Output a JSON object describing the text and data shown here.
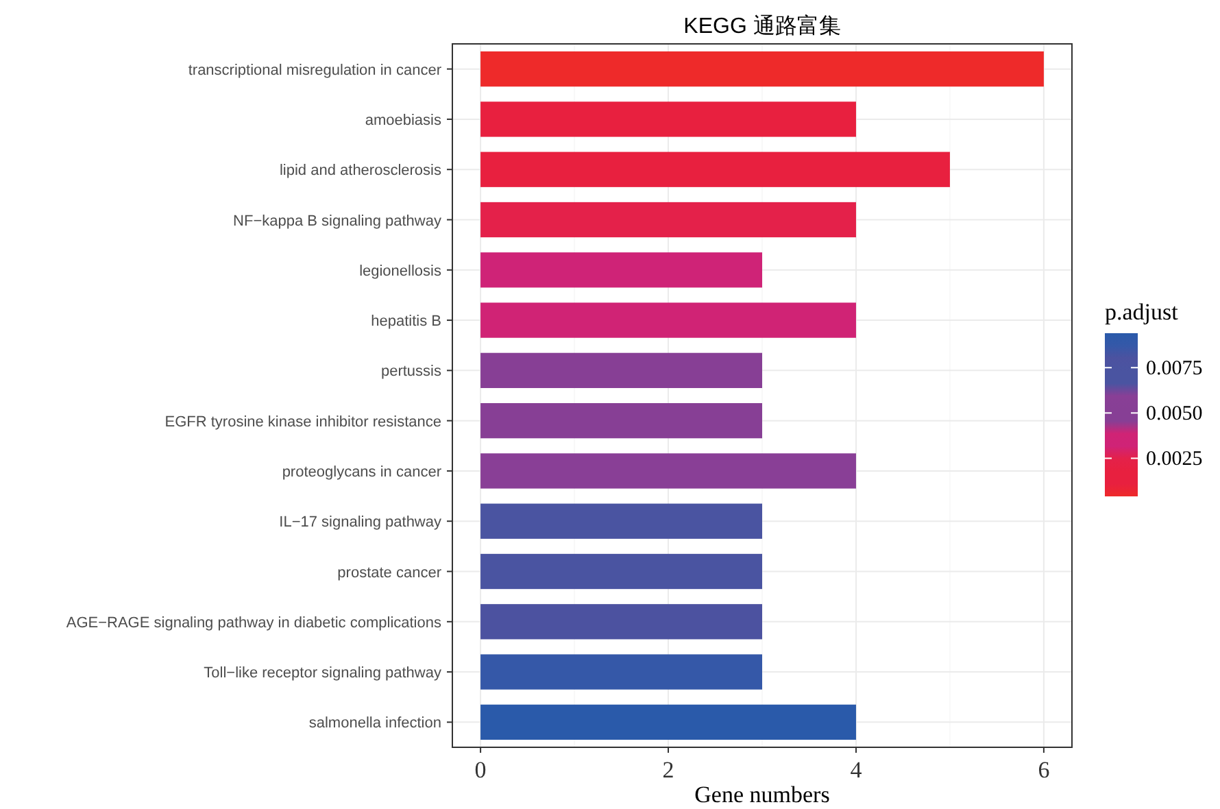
{
  "chart_data": {
    "type": "bar",
    "orientation": "horizontal",
    "title": "KEGG 通路富集",
    "xlabel": "Gene numbers",
    "clabel": "p.adjust",
    "categories": [
      "transcriptional misregulation in cancer",
      "amoebiasis",
      "lipid and atherosclerosis",
      "NF−kappa B signaling pathway",
      "legionellosis",
      "hepatitis B",
      "pertussis",
      "EGFR tyrosine kinase inhibitor resistance",
      "proteoglycans in cancer",
      "IL−17 signaling pathway",
      "prostate cancer",
      "AGE−RAGE signaling pathway in diabetic complications",
      "Toll−like receptor signaling pathway",
      "salmonella infection"
    ],
    "values": [
      6,
      4,
      5,
      4,
      3,
      4,
      3,
      3,
      4,
      3,
      3,
      3,
      3,
      4
    ],
    "colors": [
      "#ee2a2a",
      "#e8203f",
      "#e8203f",
      "#e4214a",
      "#cf2377",
      "#d02375",
      "#873f95",
      "#873f95",
      "#893f96",
      "#4a54a1",
      "#4a54a1",
      "#4c52a0",
      "#3558a8",
      "#2a5aaa"
    ],
    "xlim": [
      -0.3,
      6.3
    ],
    "xticks": [
      0,
      2,
      4,
      6
    ],
    "grid": true,
    "clim": [
      0.0004,
      0.0094
    ],
    "cticks": [
      0.0025,
      {
        "value": 0.005,
        "label": "0.0050"
      },
      0.0075
    ]
  }
}
